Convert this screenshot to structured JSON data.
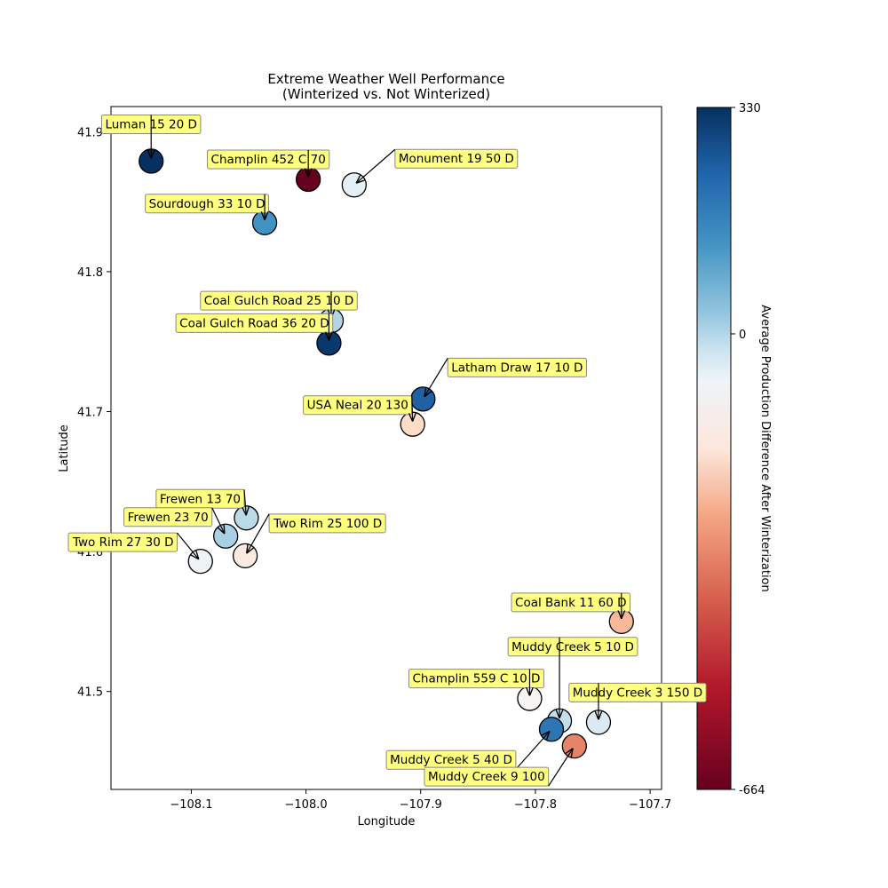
{
  "chart_data": {
    "type": "scatter",
    "title": [
      "Extreme Weather Well Performance",
      "(Winterized vs. Not Winterized)"
    ],
    "xlabel": "Longitude",
    "ylabel": "Latitude",
    "xlim": [
      -108.17,
      -107.69
    ],
    "ylim": [
      41.43,
      41.918
    ],
    "xticks": [
      -108.1,
      -108.0,
      -107.9,
      -107.8,
      -107.7
    ],
    "xtick_labels": [
      "−108.1",
      "−108.0",
      "−107.9",
      "−107.8",
      "−107.7"
    ],
    "yticks": [
      41.5,
      41.6,
      41.7,
      41.8,
      41.9
    ],
    "ytick_labels": [
      "41.5",
      "41.6",
      "41.7",
      "41.8",
      "41.9"
    ],
    "grid": false,
    "colorbar": {
      "label": "Average Production Difference After Winterization",
      "colormap": "RdBu",
      "min": -664,
      "max": 330,
      "center": 0,
      "tick_labels": [
        "330",
        "0",
        "-664"
      ],
      "tick_values": [
        330,
        0,
        -664
      ]
    },
    "points": [
      {
        "label": "Luman 15 20 D",
        "x": -108.135,
        "y": 41.879,
        "value": 330
      },
      {
        "label": "Champlin 452 C 70",
        "x": -107.998,
        "y": 41.866,
        "value": -664
      },
      {
        "label": "Monument 19 50 D",
        "x": -107.958,
        "y": 41.862,
        "value": 30
      },
      {
        "label": "Sourdough 33 10 D",
        "x": -108.036,
        "y": 41.835,
        "value": 200
      },
      {
        "label": "Coal Gulch Road 25 10 D",
        "x": -107.978,
        "y": 41.765,
        "value": 100
      },
      {
        "label": "Coal Gulch Road 36 20 D",
        "x": -107.98,
        "y": 41.749,
        "value": 320
      },
      {
        "label": "Latham Draw 17 10 D",
        "x": -107.898,
        "y": 41.709,
        "value": 270
      },
      {
        "label": "USA Neal 20 130",
        "x": -107.907,
        "y": 41.691,
        "value": -130
      },
      {
        "label": "Frewen 13 70",
        "x": -108.052,
        "y": 41.624,
        "value": 90
      },
      {
        "label": "Frewen 23 70",
        "x": -108.07,
        "y": 41.611,
        "value": 110
      },
      {
        "label": "Two Rim 25 100 D",
        "x": -108.053,
        "y": 41.597,
        "value": -60
      },
      {
        "label": "Two Rim 27 30 D",
        "x": -108.092,
        "y": 41.593,
        "value": 15
      },
      {
        "label": "Coal Bank 11 60 D",
        "x": -107.725,
        "y": 41.55,
        "value": -220
      },
      {
        "label": "Muddy Creek 5 10 D",
        "x": -107.779,
        "y": 41.479,
        "value": 80
      },
      {
        "label": "Champlin 559 C 10 D",
        "x": -107.805,
        "y": 41.495,
        "value": -15
      },
      {
        "label": "Muddy Creek 3 150 D",
        "x": -107.745,
        "y": 41.478,
        "value": 50
      },
      {
        "label": "Muddy Creek 5 40 D",
        "x": -107.786,
        "y": 41.473,
        "value": 240
      },
      {
        "label": "Muddy Creek 9 100",
        "x": -107.766,
        "y": 41.461,
        "value": -330
      }
    ]
  }
}
